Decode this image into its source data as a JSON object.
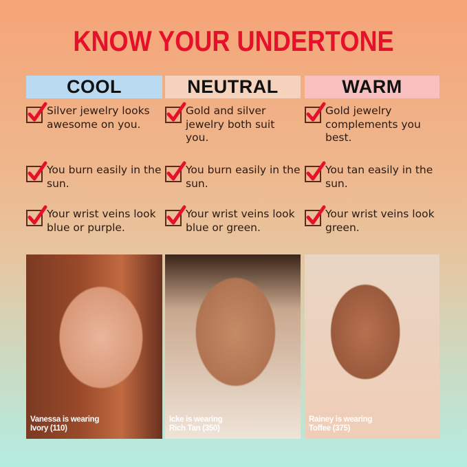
{
  "title": "KNOW YOUR UNDERTONE",
  "columns": [
    {
      "name": "COOL",
      "color": "#b9daf0",
      "items": [
        "Silver jewelry looks awesome on you.",
        "You burn easily in the sun.",
        "Your wrist veins look blue or purple."
      ],
      "caption": [
        "Vanessa is wearing",
        "Ivory (110)"
      ]
    },
    {
      "name": "NEUTRAL",
      "color": "#f5d2bb",
      "items": [
        "Gold and silver jewelry both suit you.",
        "You burn easily in the sun.",
        "Your wrist veins look blue or green."
      ],
      "caption": [
        "Icke is wearing",
        "Rich Tan (350)"
      ]
    },
    {
      "name": "WARM",
      "color": "#f8c1c0",
      "items": [
        "Gold jewelry complements you best.",
        "You tan easily in the sun.",
        "Your wrist veins look green."
      ],
      "caption": [
        "Rainey is wearing",
        "Toffee (375)"
      ]
    }
  ],
  "check_color": "#e5102a"
}
